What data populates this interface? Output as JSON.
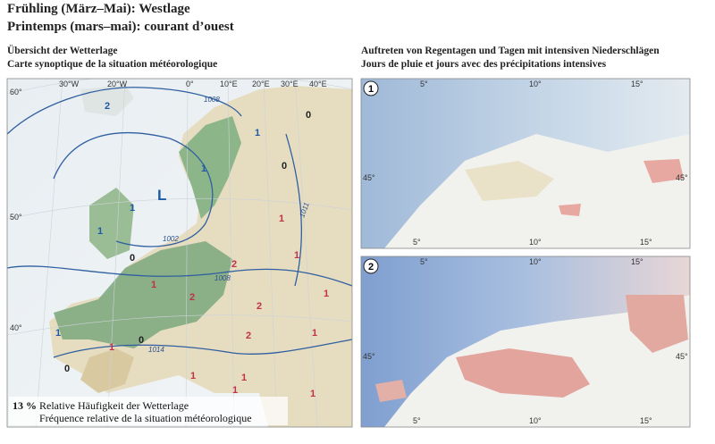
{
  "header": {
    "title_de": "Frühling (März–Mai): Westlage",
    "title_fr": "Printemps (mars–mai): courant d’ouest"
  },
  "left_panel": {
    "heading_de": "Übersicht der Wetterlage",
    "heading_fr": "Carte synoptique de la situation météorologique",
    "longitudes": [
      "30°W",
      "20°W",
      "0°",
      "10°E",
      "20°E",
      "30°E",
      "40°E"
    ],
    "latitudes": [
      "60°",
      "50°",
      "40°"
    ],
    "isobars": [
      "1008",
      "1002",
      "1008",
      "1011",
      "1014"
    ],
    "low": "L",
    "frequency_marks": [
      "2",
      "1",
      "0",
      "0",
      "1",
      "1",
      "1",
      "0",
      "1",
      "1",
      "2",
      "1",
      "2",
      "2",
      "1",
      "1",
      "2",
      "0",
      "1",
      "1",
      "0",
      "1",
      "1",
      "1",
      "1"
    ],
    "legend": {
      "value": "13 %",
      "label_de": "Relative Häufigkeit der Wetterlage",
      "label_fr": "Fréquence relative de la situation météorologique"
    }
  },
  "right_panel": {
    "heading_de": "Auftreten von Regentagen und Tagen mit intensiven Niederschlägen",
    "heading_fr": "Jours de pluie et jours avec des précipitations intensives",
    "maps": [
      {
        "number": "1",
        "labels": [
          "5°",
          "10°",
          "15°",
          "45°",
          "45°",
          "5°",
          "10°",
          "15°"
        ]
      },
      {
        "number": "2",
        "labels": [
          "5°",
          "10°",
          "15°",
          "45°",
          "45°",
          "5°",
          "10°",
          "15°"
        ]
      }
    ]
  }
}
